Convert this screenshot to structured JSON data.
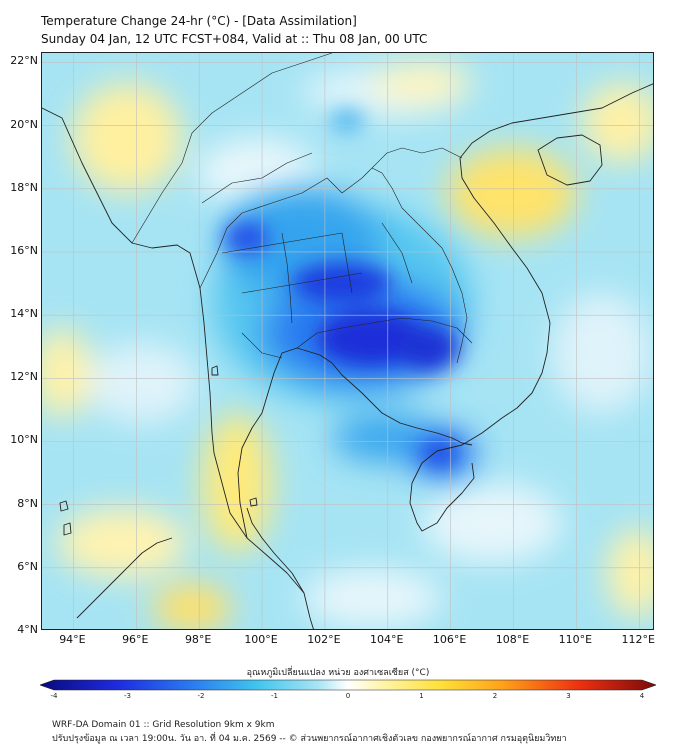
{
  "header": {
    "title_line1": "Temperature Change 24-hr (°C) - [Data Assimilation]",
    "title_line2": "Sunday 04 Jan, 12 UTC FCST+084, Valid at :: Thu 08 Jan, 00 UTC"
  },
  "map": {
    "lat_ticks": [
      "22°N",
      "20°N",
      "18°N",
      "16°N",
      "14°N",
      "12°N",
      "10°N",
      "8°N",
      "6°N",
      "4°N"
    ],
    "lon_ticks": [
      "94°E",
      "96°E",
      "98°E",
      "100°E",
      "102°E",
      "104°E",
      "106°E",
      "108°E",
      "110°E",
      "112°E"
    ],
    "lat_values": [
      22,
      20,
      18,
      16,
      14,
      12,
      10,
      8,
      6,
      4
    ],
    "lon_values": [
      94,
      96,
      98,
      100,
      102,
      104,
      106,
      108,
      110,
      112
    ],
    "lon_range": [
      93,
      112.5
    ],
    "lat_range": [
      4,
      22.3
    ],
    "background_color": "#a6e4f4",
    "coastline_color": "#222222",
    "gridline_color": "#bfbfbf"
  },
  "colorbar": {
    "title": "อุณหภูมิเปลี่ยนแปลง หน่วย องศาเซลเซียส (°C)",
    "ticks": [
      "-4",
      "-3",
      "-2",
      "-1",
      "0",
      "1",
      "2",
      "3",
      "4"
    ],
    "tick_values": [
      -4,
      -3,
      -2,
      -1,
      0,
      1,
      2,
      3,
      4
    ],
    "range": [
      -4,
      4
    ],
    "stops": [
      {
        "v": -4.0,
        "c": "#0a0a7a"
      },
      {
        "v": -3.0,
        "c": "#1e2be0"
      },
      {
        "v": -2.0,
        "c": "#2a7ef0"
      },
      {
        "v": -1.2,
        "c": "#3fc4ee"
      },
      {
        "v": -0.4,
        "c": "#a6e4f4"
      },
      {
        "v": 0.0,
        "c": "#ffffff"
      },
      {
        "v": 0.4,
        "c": "#fff6b0"
      },
      {
        "v": 1.2,
        "c": "#ffe03a"
      },
      {
        "v": 2.0,
        "c": "#ffa21a"
      },
      {
        "v": 3.0,
        "c": "#ee3010"
      },
      {
        "v": 4.0,
        "c": "#7a0a0a"
      }
    ]
  },
  "footer": {
    "line1": "WRF-DA Domain 01 :: Grid Resolution 9km x 9km",
    "line2": "ปรับปรุงข้อมูล ณ เวลา 19:00น. วัน อา. ที่ 04 ม.ค. 2569 -- © ส่วนพยากรณ์อากาศเชิงตัวเลข กองพยากรณ์อากาศ กรมอุตุนิยมวิทยา"
  }
}
